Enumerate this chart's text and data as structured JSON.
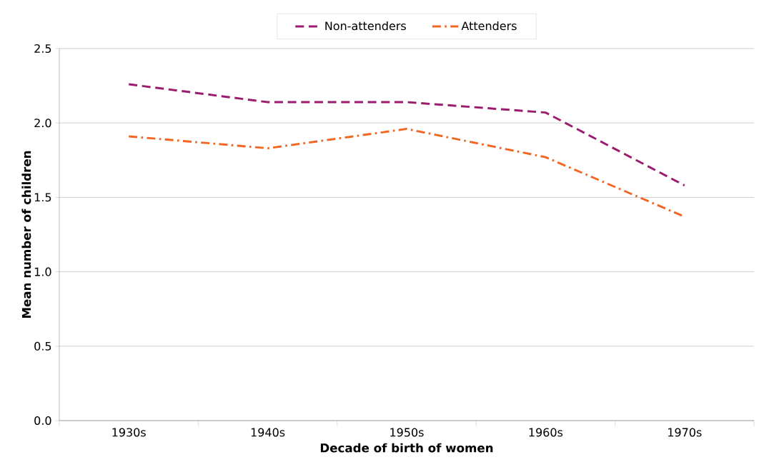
{
  "chart_data": {
    "type": "line",
    "xlabel": "Decade of birth of women",
    "ylabel": "Mean number of children",
    "categories": [
      "1930s",
      "1940s",
      "1950s",
      "1960s",
      "1970s"
    ],
    "series": [
      {
        "name": "Non-attenders",
        "color": "#9b1b6e",
        "line_style": "dashed",
        "values": [
          2.26,
          2.14,
          2.14,
          2.07,
          1.58
        ]
      },
      {
        "name": "Attenders",
        "color": "#f26522",
        "line_style": "dashdot",
        "values": [
          1.91,
          1.83,
          1.96,
          1.77,
          1.37
        ]
      }
    ],
    "ylim": [
      0,
      2.5
    ],
    "yticks": [
      {
        "value": 0,
        "label": "0.0"
      },
      {
        "value": 0.5,
        "label": "0.5"
      },
      {
        "value": 1,
        "label": "1.0"
      },
      {
        "value": 1.5,
        "label": "1.5"
      },
      {
        "value": 2,
        "label": "2.0"
      },
      {
        "value": 2.5,
        "label": "2.5"
      }
    ],
    "grid": "y",
    "legend": "top",
    "marker": "none"
  }
}
